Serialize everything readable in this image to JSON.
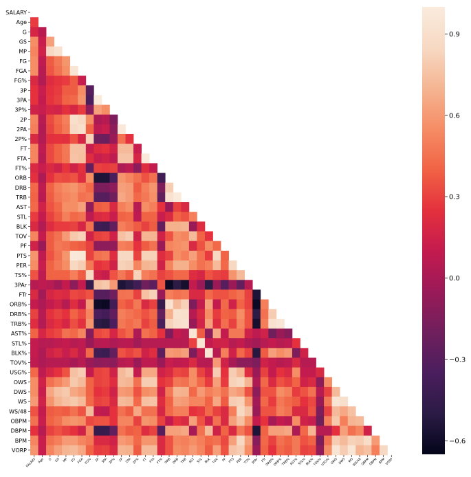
{
  "chart_data": {
    "type": "heatmap",
    "title": "",
    "labels": [
      "SALARY",
      "Age",
      "G",
      "GS",
      "MP",
      "FG",
      "FGA",
      "FG%",
      "3P",
      "3PA",
      "3P%",
      "2P",
      "2PA",
      "2P%",
      "FT",
      "FTA",
      "FT%",
      "ORB",
      "DRB",
      "TRB",
      "AST",
      "STL",
      "BLK",
      "TOV",
      "PF",
      "PTS",
      "PER",
      "TS%",
      "3PAr",
      "FTr",
      "ORB%",
      "DRB%",
      "TRB%",
      "AST%",
      "STL%",
      "BLK%",
      "TOV%",
      "USG%",
      "OWS",
      "DWS",
      "WS",
      "WS/48",
      "OBPM",
      "DBPM",
      "BPM",
      "VORP"
    ],
    "mask": "upper triangle incl. diagonal",
    "colorbar": {
      "ticks": [
        0.9,
        0.6,
        0.3,
        0.0,
        -0.3,
        -0.6
      ],
      "tick_labels": [
        "0.9",
        "0.6",
        "0.3",
        "0.0",
        "−0.3",
        "−0.6"
      ],
      "vmin": -0.65,
      "vmax": 1.0
    },
    "colormap": [
      "#03051a",
      "#2b1b45",
      "#4a1e5d",
      "#701f5d",
      "#9a1a58",
      "#c41b4f",
      "#e4313d",
      "#f16345",
      "#f58d65",
      "#f5b592",
      "#f7d9c3",
      "#faebdd"
    ],
    "rows": [
      [],
      [
        0.28
      ],
      [
        0.18,
        0.06
      ],
      [
        0.55,
        0.12,
        0.62
      ],
      [
        0.52,
        0.15,
        0.85,
        0.92
      ],
      [
        0.55,
        0.08,
        0.38,
        0.48,
        0.58
      ],
      [
        0.55,
        0.05,
        0.36,
        0.45,
        0.55,
        0.95
      ],
      [
        0.2,
        0.04,
        0.22,
        0.26,
        0.28,
        0.38,
        0.12
      ],
      [
        0.25,
        0.12,
        0.25,
        0.28,
        0.38,
        0.38,
        0.55,
        -0.3
      ],
      [
        0.25,
        0.1,
        0.26,
        0.3,
        0.4,
        0.42,
        0.58,
        -0.35,
        0.99
      ],
      [
        0.15,
        0.12,
        0.18,
        0.16,
        0.24,
        0.18,
        0.28,
        -0.1,
        0.62,
        0.55
      ],
      [
        0.52,
        0.05,
        0.33,
        0.42,
        0.5,
        0.9,
        0.85,
        0.55,
        0.02,
        0.05,
        -0.15
      ],
      [
        0.5,
        0.03,
        0.31,
        0.4,
        0.48,
        0.86,
        0.9,
        0.4,
        0.08,
        0.12,
        -0.1,
        0.98
      ],
      [
        0.2,
        0.04,
        0.24,
        0.25,
        0.24,
        0.35,
        0.18,
        0.82,
        -0.2,
        -0.22,
        -0.05,
        0.45,
        0.25
      ],
      [
        0.52,
        0.08,
        0.32,
        0.4,
        0.48,
        0.75,
        0.75,
        0.12,
        0.22,
        0.25,
        0.15,
        0.72,
        0.72,
        0.12
      ],
      [
        0.52,
        0.05,
        0.32,
        0.4,
        0.47,
        0.76,
        0.74,
        0.22,
        0.12,
        0.15,
        0.08,
        0.76,
        0.76,
        0.18,
        0.98
      ],
      [
        0.2,
        0.12,
        0.2,
        0.15,
        0.26,
        0.15,
        0.24,
        -0.25,
        0.3,
        0.28,
        0.3,
        0.02,
        0.07,
        -0.1,
        0.22,
        0.1
      ],
      [
        0.24,
        0.02,
        0.25,
        0.34,
        0.32,
        0.35,
        0.22,
        0.55,
        -0.55,
        -0.55,
        -0.35,
        0.58,
        0.52,
        0.45,
        0.35,
        0.45,
        -0.4
      ],
      [
        0.42,
        0.08,
        0.4,
        0.5,
        0.55,
        0.58,
        0.5,
        0.42,
        -0.15,
        -0.15,
        -0.1,
        0.62,
        0.6,
        0.38,
        0.5,
        0.58,
        -0.15,
        0.8
      ],
      [
        0.4,
        0.06,
        0.38,
        0.48,
        0.52,
        0.55,
        0.45,
        0.48,
        -0.3,
        -0.3,
        -0.2,
        0.65,
        0.6,
        0.42,
        0.48,
        0.56,
        -0.25,
        0.92,
        0.99
      ],
      [
        0.42,
        0.15,
        0.35,
        0.42,
        0.55,
        0.55,
        0.62,
        -0.08,
        0.38,
        0.4,
        0.2,
        0.5,
        0.55,
        0.05,
        0.55,
        0.5,
        0.25,
        -0.05,
        0.3,
        0.2
      ],
      [
        0.28,
        0.1,
        0.3,
        0.38,
        0.5,
        0.42,
        0.45,
        0.08,
        0.2,
        0.22,
        0.12,
        0.4,
        0.42,
        0.08,
        0.4,
        0.4,
        0.12,
        0.2,
        0.4,
        0.35,
        0.5
      ],
      [
        0.2,
        0.04,
        0.22,
        0.28,
        0.28,
        0.3,
        0.18,
        0.45,
        -0.4,
        -0.42,
        -0.25,
        0.5,
        0.45,
        0.38,
        0.3,
        0.38,
        -0.25,
        0.68,
        0.68,
        0.7,
        -0.05,
        0.22
      ],
      [
        0.52,
        0.1,
        0.38,
        0.45,
        0.6,
        0.78,
        0.82,
        0.15,
        0.3,
        0.32,
        0.15,
        0.75,
        0.8,
        0.15,
        0.7,
        0.7,
        0.15,
        0.35,
        0.55,
        0.52,
        0.72,
        0.4,
        0.25
      ],
      [
        0.15,
        -0.05,
        0.38,
        0.48,
        0.45,
        0.4,
        0.38,
        0.3,
        -0.1,
        -0.1,
        -0.08,
        0.5,
        0.48,
        0.25,
        0.38,
        0.45,
        -0.05,
        0.52,
        0.55,
        0.58,
        0.2,
        0.35,
        0.55,
        0.42
      ],
      [
        0.58,
        0.08,
        0.35,
        0.45,
        0.58,
        0.98,
        0.97,
        0.3,
        0.45,
        0.48,
        0.22,
        0.85,
        0.85,
        0.3,
        0.82,
        0.82,
        0.22,
        0.3,
        0.55,
        0.5,
        0.62,
        0.45,
        0.28,
        0.85,
        0.4
      ],
      [
        0.55,
        0.12,
        0.4,
        0.48,
        0.55,
        0.85,
        0.8,
        0.48,
        0.25,
        0.28,
        0.15,
        0.82,
        0.8,
        0.52,
        0.7,
        0.72,
        0.15,
        0.52,
        0.68,
        0.68,
        0.55,
        0.45,
        0.5,
        0.72,
        0.42,
        0.85
      ],
      [
        0.35,
        0.08,
        0.4,
        0.4,
        0.4,
        0.5,
        0.38,
        0.85,
        0.15,
        0.12,
        0.35,
        0.48,
        0.38,
        0.82,
        0.5,
        0.45,
        0.3,
        0.35,
        0.42,
        0.42,
        0.22,
        0.18,
        0.35,
        0.3,
        0.28,
        0.58,
        0.72
      ],
      [
        0.05,
        0.08,
        0.05,
        -0.02,
        0.1,
        -0.1,
        0.1,
        -0.45,
        0.75,
        0.78,
        0.6,
        -0.55,
        -0.5,
        -0.4,
        -0.2,
        -0.28,
        0.35,
        -0.62,
        -0.5,
        -0.58,
        0.1,
        -0.05,
        -0.5,
        -0.05,
        -0.3,
        -0.05,
        -0.25,
        0.05
      ],
      [
        0.2,
        -0.02,
        0.18,
        0.22,
        0.2,
        0.32,
        0.3,
        0.35,
        -0.3,
        -0.3,
        -0.2,
        0.45,
        0.46,
        0.3,
        0.75,
        0.82,
        -0.05,
        0.5,
        0.45,
        0.48,
        0.2,
        0.2,
        0.42,
        0.35,
        0.35,
        0.4,
        0.45,
        0.3,
        -0.55
      ],
      [
        0.1,
        0.02,
        0.1,
        0.15,
        0.05,
        0.22,
        0.1,
        0.6,
        -0.6,
        -0.62,
        -0.4,
        0.4,
        0.35,
        0.48,
        0.2,
        0.3,
        -0.45,
        0.92,
        0.72,
        0.82,
        -0.15,
        0.1,
        0.62,
        0.1,
        0.42,
        0.15,
        0.4,
        0.3,
        -0.62,
        0.5
      ],
      [
        0.3,
        0.05,
        0.25,
        0.3,
        0.25,
        0.4,
        0.32,
        0.52,
        -0.35,
        -0.38,
        -0.25,
        0.5,
        0.46,
        0.42,
        0.35,
        0.42,
        -0.25,
        0.68,
        0.92,
        0.9,
        0.05,
        0.2,
        0.55,
        0.28,
        0.4,
        0.38,
        0.55,
        0.35,
        -0.5,
        0.45,
        0.8
      ],
      [
        0.22,
        0.04,
        0.2,
        0.25,
        0.18,
        0.34,
        0.24,
        0.58,
        -0.5,
        -0.52,
        -0.34,
        0.48,
        0.43,
        0.48,
        0.3,
        0.38,
        -0.36,
        0.82,
        0.9,
        0.92,
        -0.05,
        0.16,
        0.62,
        0.22,
        0.44,
        0.3,
        0.52,
        0.35,
        -0.58,
        0.5,
        0.92,
        0.96
      ],
      [
        0.4,
        0.18,
        0.28,
        0.32,
        0.45,
        0.42,
        0.52,
        -0.12,
        0.32,
        0.35,
        0.18,
        0.35,
        0.42,
        0.02,
        0.45,
        0.4,
        0.25,
        -0.15,
        0.1,
        0.05,
        0.95,
        0.38,
        -0.1,
        0.65,
        0.1,
        0.48,
        0.48,
        0.15,
        0.08,
        0.15,
        -0.2,
        -0.05,
        -0.12
      ],
      [
        0.1,
        0.05,
        0.05,
        0.08,
        0.1,
        0.05,
        0.08,
        -0.05,
        0.05,
        0.06,
        0.02,
        0.05,
        0.06,
        -0.02,
        0.05,
        0.05,
        0.05,
        0.05,
        0.05,
        0.05,
        0.3,
        0.95,
        0.1,
        0.15,
        0.15,
        0.05,
        0.1,
        0.02,
        -0.02,
        0.05,
        0.1,
        0.05,
        0.08,
        0.25
      ],
      [
        0.1,
        0.02,
        0.15,
        0.2,
        0.12,
        0.2,
        0.08,
        0.42,
        -0.4,
        -0.42,
        -0.25,
        0.35,
        0.3,
        0.35,
        0.15,
        0.22,
        -0.28,
        0.6,
        0.58,
        0.62,
        -0.15,
        0.12,
        0.95,
        0.05,
        0.5,
        0.15,
        0.42,
        0.3,
        -0.52,
        0.38,
        0.62,
        0.55,
        0.6,
        -0.15,
        0.15
      ],
      [
        0.08,
        0.02,
        0.05,
        0.05,
        0.05,
        0.0,
        0.05,
        -0.05,
        -0.1,
        -0.08,
        -0.1,
        0.05,
        0.08,
        -0.05,
        0.08,
        0.08,
        -0.05,
        0.12,
        0.08,
        0.1,
        0.2,
        0.05,
        0.05,
        0.6,
        0.15,
        0.0,
        -0.1,
        -0.1,
        -0.15,
        0.15,
        0.1,
        0.05,
        0.08,
        0.2,
        0.05,
        0.05
      ],
      [
        0.42,
        0.08,
        0.18,
        0.25,
        0.35,
        0.75,
        0.8,
        0.1,
        0.3,
        0.32,
        0.15,
        0.72,
        0.78,
        0.1,
        0.65,
        0.65,
        0.15,
        0.2,
        0.32,
        0.3,
        0.55,
        0.3,
        0.18,
        0.8,
        0.25,
        0.8,
        0.7,
        0.22,
        -0.05,
        0.3,
        0.1,
        0.25,
        0.2,
        0.55,
        0.1,
        0.1,
        0.2
      ],
      [
        0.55,
        0.15,
        0.45,
        0.52,
        0.6,
        0.78,
        0.72,
        0.4,
        0.3,
        0.32,
        0.22,
        0.72,
        0.7,
        0.45,
        0.8,
        0.8,
        0.25,
        0.3,
        0.48,
        0.45,
        0.55,
        0.42,
        0.28,
        0.62,
        0.28,
        0.82,
        0.85,
        0.7,
        0.02,
        0.42,
        0.2,
        0.35,
        0.3,
        0.4,
        0.15,
        0.2,
        -0.1,
        0.55
      ],
      [
        0.55,
        0.12,
        0.65,
        0.75,
        0.78,
        0.65,
        0.6,
        0.4,
        0.25,
        0.28,
        0.15,
        0.6,
        0.58,
        0.35,
        0.55,
        0.58,
        0.15,
        0.48,
        0.7,
        0.68,
        0.42,
        0.6,
        0.5,
        0.55,
        0.45,
        0.65,
        0.6,
        0.35,
        -0.1,
        0.35,
        0.35,
        0.55,
        0.5,
        0.28,
        0.35,
        0.45,
        0.05,
        0.3,
        0.72
      ],
      [
        0.6,
        0.15,
        0.58,
        0.7,
        0.75,
        0.78,
        0.72,
        0.42,
        0.3,
        0.32,
        0.2,
        0.72,
        0.7,
        0.42,
        0.75,
        0.76,
        0.22,
        0.4,
        0.62,
        0.6,
        0.52,
        0.52,
        0.4,
        0.65,
        0.38,
        0.8,
        0.82,
        0.58,
        -0.02,
        0.42,
        0.28,
        0.48,
        0.42,
        0.38,
        0.25,
        0.32,
        -0.05,
        0.48,
        0.95,
        0.9
      ],
      [
        0.35,
        0.1,
        0.38,
        0.4,
        0.38,
        0.45,
        0.35,
        0.72,
        0.1,
        0.08,
        0.25,
        0.45,
        0.38,
        0.65,
        0.45,
        0.45,
        0.18,
        0.42,
        0.5,
        0.5,
        0.25,
        0.28,
        0.42,
        0.3,
        0.2,
        0.5,
        0.85,
        0.75,
        -0.05,
        0.35,
        0.35,
        0.5,
        0.45,
        0.2,
        0.2,
        0.35,
        -0.15,
        0.3,
        0.72,
        0.65,
        0.75
      ],
      [
        0.45,
        0.12,
        0.4,
        0.45,
        0.55,
        0.58,
        0.55,
        0.32,
        0.35,
        0.35,
        0.25,
        0.52,
        0.52,
        0.3,
        0.58,
        0.55,
        0.3,
        0.1,
        0.25,
        0.2,
        0.62,
        0.35,
        0.15,
        0.45,
        0.2,
        0.62,
        0.75,
        0.55,
        0.1,
        0.25,
        0.0,
        0.1,
        0.06,
        0.55,
        0.15,
        0.12,
        -0.2,
        0.5,
        0.78,
        0.5,
        0.7,
        0.72
      ],
      [
        0.25,
        0.05,
        0.3,
        0.35,
        0.3,
        0.25,
        0.15,
        0.52,
        -0.45,
        -0.45,
        -0.25,
        0.45,
        0.38,
        0.4,
        0.22,
        0.3,
        -0.3,
        0.62,
        0.62,
        0.65,
        0.0,
        0.45,
        0.72,
        0.15,
        0.4,
        0.2,
        0.48,
        0.35,
        -0.55,
        0.4,
        0.62,
        0.62,
        0.65,
        0.02,
        0.42,
        0.7,
        0.05,
        0.05,
        0.25,
        0.62,
        0.45,
        0.52,
        0.15
      ],
      [
        0.52,
        0.12,
        0.45,
        0.5,
        0.6,
        0.6,
        0.52,
        0.48,
        0.2,
        0.2,
        0.15,
        0.6,
        0.56,
        0.42,
        0.58,
        0.58,
        0.2,
        0.35,
        0.52,
        0.5,
        0.55,
        0.5,
        0.42,
        0.45,
        0.32,
        0.62,
        0.85,
        0.62,
        -0.12,
        0.42,
        0.3,
        0.45,
        0.4,
        0.48,
        0.35,
        0.4,
        -0.15,
        0.45,
        0.8,
        0.72,
        0.82,
        0.8,
        0.88,
        0.6
      ],
      [
        0.58,
        0.12,
        0.52,
        0.62,
        0.7,
        0.72,
        0.65,
        0.4,
        0.28,
        0.3,
        0.2,
        0.7,
        0.68,
        0.38,
        0.72,
        0.72,
        0.2,
        0.35,
        0.55,
        0.52,
        0.6,
        0.52,
        0.38,
        0.62,
        0.35,
        0.76,
        0.8,
        0.55,
        -0.05,
        0.4,
        0.25,
        0.42,
        0.38,
        0.48,
        0.3,
        0.32,
        -0.08,
        0.55,
        0.95,
        0.8,
        0.95,
        0.7,
        0.75,
        0.5,
        0.85
      ]
    ]
  }
}
